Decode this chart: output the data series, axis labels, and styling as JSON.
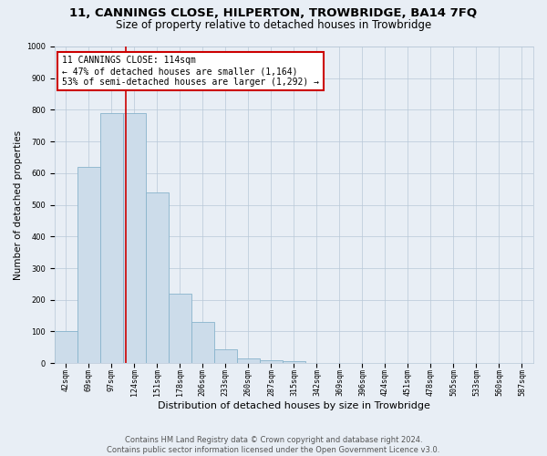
{
  "title": "11, CANNINGS CLOSE, HILPERTON, TROWBRIDGE, BA14 7FQ",
  "subtitle": "Size of property relative to detached houses in Trowbridge",
  "xlabel": "Distribution of detached houses by size in Trowbridge",
  "ylabel": "Number of detached properties",
  "bar_labels": [
    "42sqm",
    "69sqm",
    "97sqm",
    "124sqm",
    "151sqm",
    "178sqm",
    "206sqm",
    "233sqm",
    "260sqm",
    "287sqm",
    "315sqm",
    "342sqm",
    "369sqm",
    "396sqm",
    "424sqm",
    "451sqm",
    "478sqm",
    "505sqm",
    "533sqm",
    "560sqm",
    "587sqm"
  ],
  "bar_values": [
    100,
    620,
    790,
    790,
    540,
    220,
    130,
    45,
    15,
    10,
    5,
    0,
    0,
    0,
    0,
    0,
    0,
    0,
    0,
    0,
    0
  ],
  "bar_color": "#ccdcea",
  "bar_edge_color": "#88b4cc",
  "background_color": "#e8eef5",
  "grid_color": "#b8c8d8",
  "vline_color": "#cc0000",
  "annotation_text": "11 CANNINGS CLOSE: 114sqm\n← 47% of detached houses are smaller (1,164)\n53% of semi-detached houses are larger (1,292) →",
  "annotation_box_color": "#ffffff",
  "annotation_box_edge": "#cc0000",
  "ylim": [
    0,
    1000
  ],
  "yticks": [
    0,
    100,
    200,
    300,
    400,
    500,
    600,
    700,
    800,
    900,
    1000
  ],
  "footnote": "Contains HM Land Registry data © Crown copyright and database right 2024.\nContains public sector information licensed under the Open Government Licence v3.0.",
  "title_fontsize": 9.5,
  "subtitle_fontsize": 8.5,
  "xlabel_fontsize": 8,
  "ylabel_fontsize": 7.5,
  "tick_fontsize": 6,
  "annotation_fontsize": 7,
  "footnote_fontsize": 6
}
